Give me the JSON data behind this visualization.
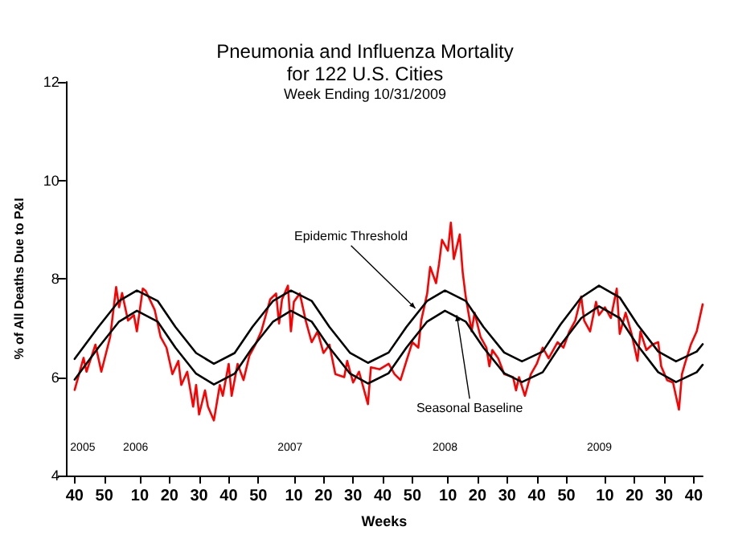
{
  "chart_data": {
    "type": "line",
    "title": "Pneumonia and Influenza Mortality\nfor 122 U.S. Cities",
    "subtitle": "Week Ending 10/31/2009",
    "xlabel": "Weeks",
    "ylabel": "% of All Deaths Due to P&I",
    "xlim": [
      "2005-09-17",
      "2009-10-31"
    ],
    "ylim": [
      4,
      12
    ],
    "yticks": [
      4,
      6,
      8,
      10,
      12
    ],
    "xticks": [
      {
        "value": "2005-10-08",
        "label": "40"
      },
      {
        "value": "2005-12-17",
        "label": "50"
      },
      {
        "value": "2006-03-11",
        "label": "10"
      },
      {
        "value": "2006-05-20",
        "label": "20"
      },
      {
        "value": "2006-07-29",
        "label": "30"
      },
      {
        "value": "2006-10-07",
        "label": "40"
      },
      {
        "value": "2006-12-16",
        "label": "50"
      },
      {
        "value": "2007-03-10",
        "label": "10"
      },
      {
        "value": "2007-05-19",
        "label": "20"
      },
      {
        "value": "2007-07-28",
        "label": "30"
      },
      {
        "value": "2007-10-06",
        "label": "40"
      },
      {
        "value": "2007-12-15",
        "label": "50"
      },
      {
        "value": "2008-03-08",
        "label": "10"
      },
      {
        "value": "2008-05-17",
        "label": "20"
      },
      {
        "value": "2008-07-26",
        "label": "30"
      },
      {
        "value": "2008-10-04",
        "label": "40"
      },
      {
        "value": "2008-12-13",
        "label": "50"
      },
      {
        "value": "2009-03-14",
        "label": "10"
      },
      {
        "value": "2009-05-23",
        "label": "20"
      },
      {
        "value": "2009-08-01",
        "label": "30"
      },
      {
        "value": "2009-10-10",
        "label": "40"
      }
    ],
    "grid": false,
    "marker": "none",
    "line_style": "solid",
    "series": [
      {
        "color": "#ff0000",
        "x": [
          "2005-10-08",
          "2005-10-29",
          "2005-11-05",
          "2005-11-26",
          "2005-12-10",
          "2005-12-31",
          "2006-01-14",
          "2006-01-21",
          "2006-01-28",
          "2006-02-11",
          "2006-02-25",
          "2006-03-04",
          "2006-03-18",
          "2006-03-25",
          "2006-04-15",
          "2006-04-29",
          "2006-05-13",
          "2006-05-27",
          "2006-06-10",
          "2006-06-17",
          "2006-07-01",
          "2006-07-15",
          "2006-07-22",
          "2006-07-29",
          "2006-08-12",
          "2006-08-19",
          "2006-09-02",
          "2006-09-16",
          "2006-09-23",
          "2006-10-07",
          "2006-10-14",
          "2006-10-28",
          "2006-11-11",
          "2006-11-25",
          "2006-12-09",
          "2006-12-23",
          "2007-01-13",
          "2007-01-27",
          "2007-02-03",
          "2007-02-10",
          "2007-02-24",
          "2007-03-03",
          "2007-03-10",
          "2007-03-24",
          "2007-04-07",
          "2007-04-21",
          "2007-05-05",
          "2007-05-19",
          "2007-06-02",
          "2007-06-16",
          "2007-07-07",
          "2007-07-14",
          "2007-07-28",
          "2007-08-11",
          "2007-09-01",
          "2007-09-08",
          "2007-09-29",
          "2007-10-20",
          "2007-11-03",
          "2007-11-17",
          "2007-12-01",
          "2007-12-15",
          "2007-12-29",
          "2008-01-05",
          "2008-01-19",
          "2008-01-26",
          "2008-02-09",
          "2008-02-16",
          "2008-02-23",
          "2008-03-08",
          "2008-03-15",
          "2008-03-22",
          "2008-04-05",
          "2008-04-12",
          "2008-04-19",
          "2008-05-03",
          "2008-05-10",
          "2008-05-24",
          "2008-06-07",
          "2008-06-14",
          "2008-06-21",
          "2008-07-05",
          "2008-07-19",
          "2008-08-09",
          "2008-08-16",
          "2008-08-23",
          "2008-09-06",
          "2008-09-20",
          "2008-10-04",
          "2008-10-18",
          "2008-11-01",
          "2008-11-22",
          "2008-12-06",
          "2008-12-20",
          "2009-01-03",
          "2009-01-17",
          "2009-01-24",
          "2009-02-07",
          "2009-02-21",
          "2009-02-28",
          "2009-03-14",
          "2009-03-28",
          "2009-04-11",
          "2009-04-18",
          "2009-05-02",
          "2009-05-16",
          "2009-05-30",
          "2009-06-06",
          "2009-06-20",
          "2009-07-04",
          "2009-07-18",
          "2009-07-25",
          "2009-08-08",
          "2009-08-22",
          "2009-09-05",
          "2009-09-12",
          "2009-09-19",
          "2009-10-03",
          "2009-10-17",
          "2009-10-31"
        ],
        "values": [
          5.74,
          6.39,
          6.11,
          6.66,
          6.11,
          6.82,
          7.83,
          7.42,
          7.71,
          7.15,
          7.26,
          6.93,
          7.8,
          7.75,
          7.37,
          6.82,
          6.6,
          6.06,
          6.33,
          5.84,
          6.11,
          5.4,
          5.84,
          5.24,
          5.73,
          5.4,
          5.12,
          5.84,
          5.62,
          6.27,
          5.62,
          6.27,
          5.94,
          6.44,
          6.66,
          6.93,
          7.58,
          7.7,
          7.09,
          7.58,
          7.86,
          6.93,
          7.53,
          7.7,
          7.15,
          6.71,
          6.93,
          6.49,
          6.66,
          6.06,
          6.0,
          6.33,
          5.89,
          6.11,
          5.45,
          6.2,
          6.16,
          6.27,
          6.06,
          5.94,
          6.33,
          6.71,
          6.6,
          7.15,
          7.7,
          8.24,
          7.91,
          8.3,
          8.79,
          8.57,
          9.14,
          8.4,
          8.9,
          8.13,
          7.64,
          6.93,
          7.31,
          6.82,
          6.6,
          6.22,
          6.55,
          6.38,
          6.06,
          6.0,
          5.73,
          6.0,
          5.62,
          6.06,
          6.27,
          6.6,
          6.38,
          6.71,
          6.6,
          6.93,
          7.15,
          7.64,
          7.15,
          6.93,
          7.53,
          7.26,
          7.42,
          7.2,
          7.8,
          6.88,
          7.31,
          6.88,
          6.33,
          6.93,
          6.55,
          6.66,
          6.71,
          6.22,
          5.94,
          5.89,
          5.34,
          6.06,
          6.27,
          6.66,
          6.93,
          7.48
        ]
      },
      {
        "color": "#000000",
        "x": [
          "2005-10-08",
          "2005-12-03",
          "2006-01-21",
          "2006-03-04",
          "2006-04-22",
          "2006-06-03",
          "2006-07-22",
          "2006-09-02",
          "2006-10-21",
          "2006-12-02",
          "2007-01-20",
          "2007-03-03",
          "2007-04-21",
          "2007-06-02",
          "2007-07-21",
          "2007-09-01",
          "2007-10-20",
          "2007-12-01",
          "2008-01-19",
          "2008-03-01",
          "2008-04-19",
          "2008-05-31",
          "2008-07-19",
          "2008-08-30",
          "2008-10-18",
          "2008-11-29",
          "2009-01-17",
          "2009-02-28",
          "2009-04-18",
          "2009-05-30",
          "2009-07-18",
          "2009-08-29",
          "2009-10-17",
          "2009-10-31"
        ],
        "values": [
          6.37,
          7.02,
          7.55,
          7.76,
          7.55,
          7.02,
          6.49,
          6.27,
          6.49,
          7.02,
          7.55,
          7.76,
          7.55,
          7.02,
          6.49,
          6.29,
          6.5,
          7.02,
          7.55,
          7.76,
          7.55,
          7.02,
          6.5,
          6.32,
          6.52,
          7.07,
          7.62,
          7.86,
          7.62,
          7.07,
          6.52,
          6.32,
          6.52,
          6.67
        ]
      },
      {
        "color": "#000000",
        "x": [
          "2005-10-08",
          "2005-12-03",
          "2006-01-21",
          "2006-03-04",
          "2006-04-22",
          "2006-06-03",
          "2006-07-22",
          "2006-09-02",
          "2006-10-21",
          "2006-12-02",
          "2007-01-20",
          "2007-03-03",
          "2007-04-21",
          "2007-06-02",
          "2007-07-21",
          "2007-09-01",
          "2007-10-20",
          "2007-12-01",
          "2008-01-19",
          "2008-03-01",
          "2008-04-19",
          "2008-05-31",
          "2008-07-19",
          "2008-08-30",
          "2008-10-18",
          "2008-11-29",
          "2009-01-17",
          "2009-02-28",
          "2009-04-18",
          "2009-05-30",
          "2009-07-18",
          "2009-08-29",
          "2009-10-17",
          "2009-10-31"
        ],
        "values": [
          5.95,
          6.6,
          7.13,
          7.35,
          7.13,
          6.6,
          6.07,
          5.85,
          6.07,
          6.6,
          7.13,
          7.35,
          7.13,
          6.6,
          6.07,
          5.87,
          6.08,
          6.6,
          7.13,
          7.35,
          7.13,
          6.6,
          6.08,
          5.9,
          6.1,
          6.65,
          7.2,
          7.44,
          7.2,
          6.65,
          6.1,
          5.9,
          6.1,
          6.25
        ]
      }
    ],
    "annotations": [
      {
        "text": "Epidemic Threshold",
        "x": "2007-12-22",
        "y": 7.4
      },
      {
        "text": "Seasonal Baseline",
        "x": "2008-03-29",
        "y": 7.26
      },
      "2005",
      "2006",
      "2007",
      "2008",
      "2009"
    ]
  }
}
